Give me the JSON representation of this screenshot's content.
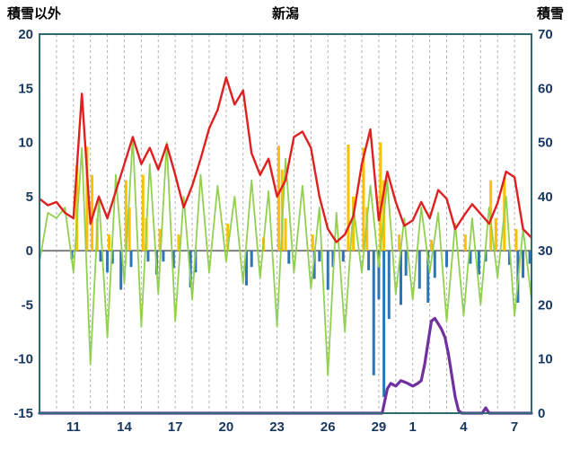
{
  "chart_data": {
    "type": "line",
    "title": "新潟",
    "left_axis_title": "積雪以外",
    "right_axis_title": "積雪",
    "x_range": [
      9,
      38
    ],
    "left_axis": {
      "min": -15,
      "max": 20,
      "ticks": [
        20,
        15,
        10,
        5,
        0,
        -5,
        -10,
        -15
      ]
    },
    "right_axis": {
      "min": 0,
      "max": 70,
      "ticks": [
        70,
        60,
        50,
        40,
        30,
        20,
        10,
        0
      ]
    },
    "x_ticks": [
      {
        "day": 11,
        "label": "11"
      },
      {
        "day": 14,
        "label": "14"
      },
      {
        "day": 17,
        "label": "17"
      },
      {
        "day": 20,
        "label": "20"
      },
      {
        "day": 23,
        "label": "23"
      },
      {
        "day": 26,
        "label": "26"
      },
      {
        "day": 29,
        "label": "29"
      },
      {
        "day": 31,
        "label": "1"
      },
      {
        "day": 34,
        "label": "4"
      },
      {
        "day": 37,
        "label": "7"
      }
    ],
    "grid": {
      "vertical_step_days": 1,
      "dashed": true
    },
    "style": {
      "axis_text_color": "#17375e",
      "frame_color": "#2d6a73",
      "grid_color": "#b3b3b3",
      "zero_line_color": "#7f7f7f",
      "background": "#ffffff"
    },
    "series": {
      "red_line": {
        "color": "#e02020",
        "axis": "left",
        "x_start": 9,
        "x_step": 0.5,
        "values": [
          4.8,
          4.2,
          4.5,
          3.5,
          3,
          14.5,
          2.5,
          5,
          3,
          5.5,
          8,
          10.5,
          8,
          9.5,
          7.5,
          9.8,
          7,
          4,
          6,
          8.5,
          11.3,
          13,
          16,
          13.5,
          14.8,
          9,
          7,
          8.5,
          5,
          6.5,
          10.5,
          11,
          9.5,
          5,
          2,
          0.8,
          1.5,
          3.2,
          8,
          11.2,
          2.8,
          7.3,
          4.5,
          2.3,
          2.8,
          4.5,
          3,
          5.6,
          4.8,
          2,
          3.2,
          4.3,
          3.4,
          2.5,
          4.4,
          7.3,
          6.8,
          2,
          1.2
        ]
      },
      "green_line": {
        "color": "#92d050",
        "axis": "left",
        "x_start": 9,
        "x_step": 0.5,
        "values": [
          -1,
          3.5,
          3,
          4,
          -2,
          9.5,
          -10.5,
          5,
          -8,
          7,
          -3,
          10.5,
          -7,
          8,
          -4,
          10,
          -6.5,
          5,
          -4.5,
          7,
          -2,
          6,
          -1,
          5,
          -3,
          6.5,
          -2.5,
          5.5,
          -7,
          8.5,
          -2,
          6,
          -3.5,
          4,
          -11.5,
          3.5,
          -7.5,
          4,
          -2,
          6,
          -1.5,
          6.5,
          -4,
          3,
          -4.5,
          4,
          -2,
          3.5,
          -6.5,
          2.5,
          -6,
          3,
          -5,
          4,
          -2.5,
          5,
          -6,
          2,
          -4.5
        ]
      },
      "yellow_bars": {
        "color": "#ffc000",
        "axis": "left",
        "bars": [
          [
            11.2,
            7.8
          ],
          [
            11.8,
            9.6
          ],
          [
            12.1,
            7
          ],
          [
            12.4,
            3
          ],
          [
            13.1,
            1.5
          ],
          [
            14.1,
            6.5
          ],
          [
            14.3,
            4
          ],
          [
            15.1,
            7
          ],
          [
            15.3,
            3
          ],
          [
            16.1,
            2
          ],
          [
            17.2,
            1.5
          ],
          [
            20.1,
            2.5
          ],
          [
            22.2,
            1.2
          ],
          [
            23.1,
            9.7
          ],
          [
            23.3,
            7.5
          ],
          [
            23.5,
            3
          ],
          [
            25.1,
            1.5
          ],
          [
            27.2,
            9.8
          ],
          [
            27.5,
            5
          ],
          [
            28.1,
            9.5
          ],
          [
            28.3,
            4
          ],
          [
            29.1,
            10
          ],
          [
            29.3,
            6.5
          ],
          [
            30.2,
            1.5
          ],
          [
            32.1,
            1
          ],
          [
            34.1,
            1.5
          ],
          [
            35.6,
            6.5
          ],
          [
            35.9,
            3
          ],
          [
            36.4,
            6.8
          ],
          [
            37.1,
            2
          ]
        ]
      },
      "blue_bars": {
        "color": "#2e75b6",
        "axis": "left",
        "bars": [
          [
            10.9,
            -0.8
          ],
          [
            12.6,
            -1
          ],
          [
            13.0,
            -2
          ],
          [
            13.3,
            -1.2
          ],
          [
            13.8,
            -3.6
          ],
          [
            14.4,
            -1.5
          ],
          [
            15.4,
            -1
          ],
          [
            15.9,
            -2.2
          ],
          [
            16.3,
            -1
          ],
          [
            16.9,
            -1.6
          ],
          [
            17.9,
            -3.4
          ],
          [
            18.2,
            -2
          ],
          [
            21.2,
            -3.2
          ],
          [
            21.5,
            -1.5
          ],
          [
            23.7,
            -1.2
          ],
          [
            25.2,
            -2.6
          ],
          [
            25.5,
            -1
          ],
          [
            26.0,
            -3.6
          ],
          [
            26.3,
            -1.5
          ],
          [
            26.9,
            -1
          ],
          [
            28.4,
            -1.8
          ],
          [
            28.7,
            -11.5
          ],
          [
            29.0,
            -4.5
          ],
          [
            29.3,
            -13.5
          ],
          [
            29.6,
            -6.3
          ],
          [
            30.3,
            -5
          ],
          [
            30.6,
            -2.3
          ],
          [
            31.4,
            -3.5
          ],
          [
            31.9,
            -4.8
          ],
          [
            32.3,
            -2.5
          ],
          [
            33.0,
            -1.5
          ],
          [
            34.4,
            -1.2
          ],
          [
            34.9,
            -2.2
          ],
          [
            35.3,
            -1
          ],
          [
            36.7,
            -1.3
          ],
          [
            37.2,
            -4.8
          ],
          [
            37.5,
            -2.5
          ],
          [
            37.9,
            -1.2
          ]
        ]
      },
      "purple_line": {
        "color": "#7030a0",
        "axis": "right",
        "points": [
          [
            9,
            0
          ],
          [
            29.2,
            0
          ],
          [
            29.5,
            4.5
          ],
          [
            29.7,
            5.5
          ],
          [
            30.0,
            5
          ],
          [
            30.3,
            6
          ],
          [
            30.7,
            5.5
          ],
          [
            31.0,
            5
          ],
          [
            31.3,
            5.5
          ],
          [
            31.5,
            6
          ],
          [
            31.7,
            9
          ],
          [
            31.9,
            13
          ],
          [
            32.1,
            17
          ],
          [
            32.3,
            17.5
          ],
          [
            32.5,
            16.5
          ],
          [
            32.7,
            15.5
          ],
          [
            32.9,
            14
          ],
          [
            33.1,
            11
          ],
          [
            33.3,
            7
          ],
          [
            33.5,
            3
          ],
          [
            33.7,
            0.5
          ],
          [
            33.9,
            0
          ],
          [
            35.1,
            0
          ],
          [
            35.3,
            1
          ],
          [
            35.5,
            0
          ],
          [
            38,
            0
          ]
        ]
      }
    }
  }
}
